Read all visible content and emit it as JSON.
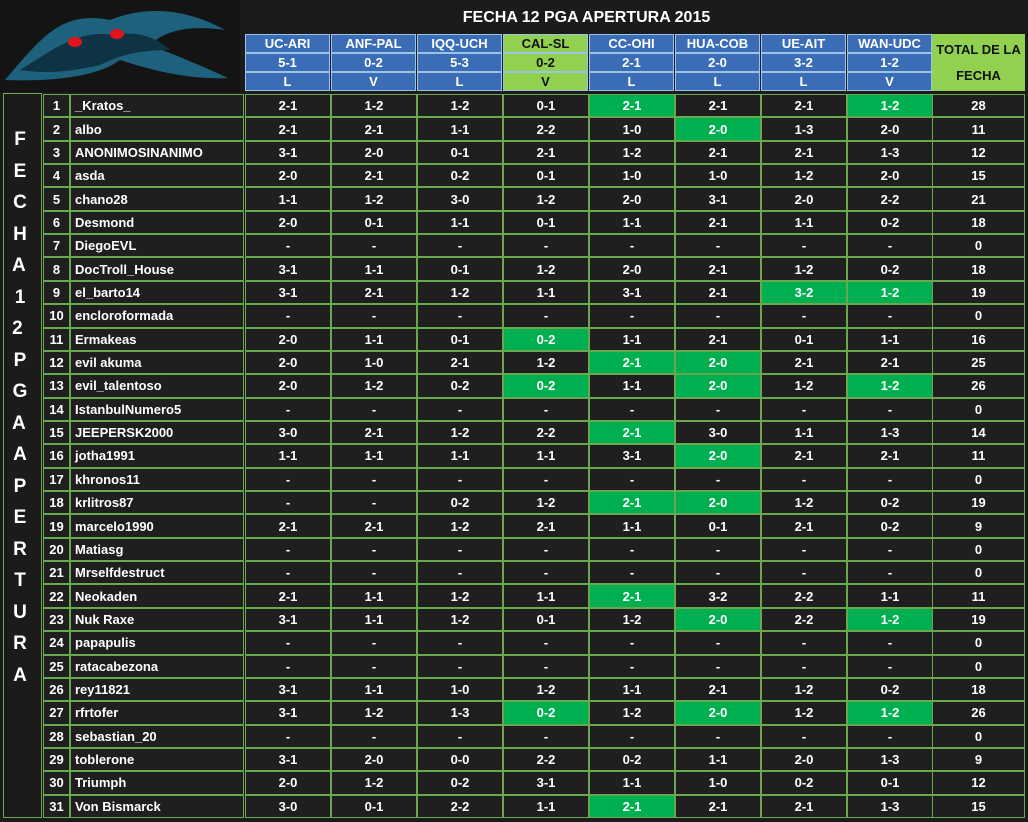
{
  "title": "FECHA 12 PGA APERTURA 2015",
  "side_label": "FECHA 12 PGA APERTURA",
  "total_header": "TOTAL DE LA FECHA",
  "matches": [
    {
      "teams": "UC-ARI",
      "score": "5-1",
      "pick": "L",
      "color": "#3a6db5"
    },
    {
      "teams": "ANF-PAL",
      "score": "0-2",
      "pick": "V",
      "color": "#3a6db5"
    },
    {
      "teams": "IQQ-UCH",
      "score": "5-3",
      "pick": "L",
      "color": "#3a6db5"
    },
    {
      "teams": "CAL-SL",
      "score": "0-2",
      "pick": "V",
      "color": "#92d050"
    },
    {
      "teams": "CC-OHI",
      "score": "2-1",
      "pick": "L",
      "color": "#3a6db5"
    },
    {
      "teams": "HUA-COB",
      "score": "2-0",
      "pick": "L",
      "color": "#3a6db5"
    },
    {
      "teams": "UE-AIT",
      "score": "3-2",
      "pick": "L",
      "color": "#3a6db5"
    },
    {
      "teams": "WAN-UDC",
      "score": "1-2",
      "pick": "V",
      "color": "#3a6db5"
    }
  ],
  "rows": [
    [
      1,
      "_Kratos_",
      "2-1",
      "1-2",
      "1-2",
      "0-1",
      "2-1",
      "2-1",
      "2-1",
      "1-2",
      28
    ],
    [
      2,
      "albo",
      "2-1",
      "2-1",
      "1-1",
      "2-2",
      "1-0",
      "2-0",
      "1-3",
      "2-0",
      11
    ],
    [
      3,
      "ANONIMOSINANIMO",
      "3-1",
      "2-0",
      "0-1",
      "2-1",
      "1-2",
      "2-1",
      "2-1",
      "1-3",
      12
    ],
    [
      4,
      "asda",
      "2-0",
      "2-1",
      "0-2",
      "0-1",
      "1-0",
      "1-0",
      "1-2",
      "2-0",
      15
    ],
    [
      5,
      "chano28",
      "1-1",
      "1-2",
      "3-0",
      "1-2",
      "2-0",
      "3-1",
      "2-0",
      "2-2",
      21
    ],
    [
      6,
      "Desmond",
      "2-0",
      "0-1",
      "1-1",
      "0-1",
      "1-1",
      "2-1",
      "1-1",
      "0-2",
      18
    ],
    [
      7,
      "DiegoEVL",
      "-",
      "-",
      "-",
      "-",
      "-",
      "-",
      "-",
      "-",
      0
    ],
    [
      8,
      "DocTroll_House",
      "3-1",
      "1-1",
      "0-1",
      "1-2",
      "2-0",
      "2-1",
      "1-2",
      "0-2",
      18
    ],
    [
      9,
      "el_barto14",
      "3-1",
      "2-1",
      "1-2",
      "1-1",
      "3-1",
      "2-1",
      "3-2",
      "1-2",
      19
    ],
    [
      10,
      "encloroformada",
      "-",
      "-",
      "-",
      "-",
      "-",
      "-",
      "-",
      "-",
      0
    ],
    [
      11,
      "Ermakeas",
      "2-0",
      "1-1",
      "0-1",
      "0-2",
      "1-1",
      "2-1",
      "0-1",
      "1-1",
      16
    ],
    [
      12,
      "evil akuma",
      "2-0",
      "1-0",
      "2-1",
      "1-2",
      "2-1",
      "2-0",
      "2-1",
      "2-1",
      25
    ],
    [
      13,
      "evil_talentoso",
      "2-0",
      "1-2",
      "0-2",
      "0-2",
      "1-1",
      "2-0",
      "1-2",
      "1-2",
      26
    ],
    [
      14,
      "IstanbulNumero5",
      "-",
      "-",
      "-",
      "-",
      "-",
      "-",
      "-",
      "-",
      0
    ],
    [
      15,
      "JEEPERSK2000",
      "3-0",
      "2-1",
      "1-2",
      "2-2",
      "2-1",
      "3-0",
      "1-1",
      "1-3",
      14
    ],
    [
      16,
      "jotha1991",
      "1-1",
      "1-1",
      "1-1",
      "1-1",
      "3-1",
      "2-0",
      "2-1",
      "2-1",
      11
    ],
    [
      17,
      "khronos11",
      "-",
      "-",
      "-",
      "-",
      "-",
      "-",
      "-",
      "-",
      0
    ],
    [
      18,
      "krlitros87",
      "-",
      "-",
      "0-2",
      "1-2",
      "2-1",
      "2-0",
      "1-2",
      "0-2",
      19
    ],
    [
      19,
      "marcelo1990",
      "2-1",
      "2-1",
      "1-2",
      "2-1",
      "1-1",
      "0-1",
      "2-1",
      "0-2",
      9
    ],
    [
      20,
      "Matiasg",
      "-",
      "-",
      "-",
      "-",
      "-",
      "-",
      "-",
      "-",
      0
    ],
    [
      21,
      "Mrselfdestruct",
      "-",
      "-",
      "-",
      "-",
      "-",
      "-",
      "-",
      "-",
      0
    ],
    [
      22,
      "Neokaden",
      "2-1",
      "1-1",
      "1-2",
      "1-1",
      "2-1",
      "3-2",
      "2-2",
      "1-1",
      11
    ],
    [
      23,
      "Nuk Raxe",
      "3-1",
      "1-1",
      "1-2",
      "0-1",
      "1-2",
      "2-0",
      "2-2",
      "1-2",
      19
    ],
    [
      24,
      "papapulis",
      "-",
      "-",
      "-",
      "-",
      "-",
      "-",
      "-",
      "-",
      0
    ],
    [
      25,
      "ratacabezona",
      "-",
      "-",
      "-",
      "-",
      "-",
      "-",
      "-",
      "-",
      0
    ],
    [
      26,
      "rey11821",
      "3-1",
      "1-1",
      "1-0",
      "1-2",
      "1-1",
      "2-1",
      "1-2",
      "0-2",
      18
    ],
    [
      27,
      "rfrtofer",
      "3-1",
      "1-2",
      "1-3",
      "0-2",
      "1-2",
      "2-0",
      "1-2",
      "1-2",
      26
    ],
    [
      28,
      "sebastian_20",
      "-",
      "-",
      "-",
      "-",
      "-",
      "-",
      "-",
      "-",
      0
    ],
    [
      29,
      "toblerone",
      "3-1",
      "2-0",
      "0-0",
      "2-2",
      "0-2",
      "1-1",
      "2-0",
      "1-3",
      9
    ],
    [
      30,
      "Triumph",
      "2-0",
      "1-2",
      "0-2",
      "3-1",
      "1-1",
      "1-0",
      "0-2",
      "0-1",
      12
    ],
    [
      31,
      "Von Bismarck",
      "3-0",
      "0-1",
      "2-2",
      "1-1",
      "2-1",
      "2-1",
      "2-1",
      "1-3",
      15
    ]
  ]
}
